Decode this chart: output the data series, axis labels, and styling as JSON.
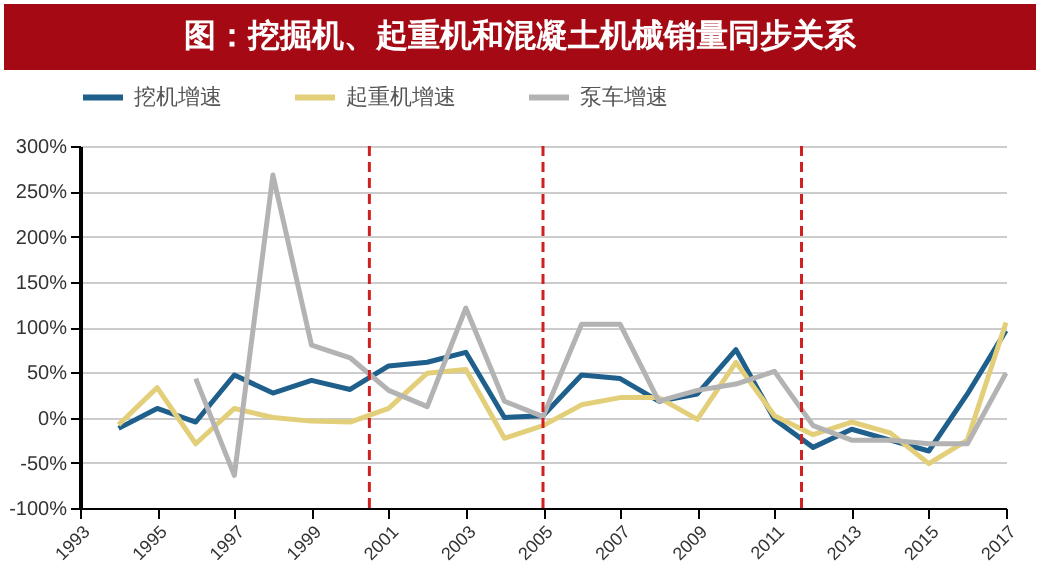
{
  "chart_data": {
    "type": "line",
    "title": "图：挖掘机、起重机和混凝土机械销量同步关系",
    "x": [
      1994,
      1995,
      1996,
      1997,
      1998,
      1999,
      2000,
      2001,
      2002,
      2003,
      2004,
      2005,
      2006,
      2007,
      2008,
      2009,
      2010,
      2011,
      2012,
      2013,
      2014,
      2015,
      2016,
      2017
    ],
    "series": [
      {
        "name": "挖机增速",
        "color": "#1f5f8b",
        "values": [
          -12,
          10,
          -5,
          47,
          27,
          41,
          31,
          57,
          61,
          72,
          0,
          2,
          47,
          43,
          18,
          26,
          75,
          -2,
          -33,
          -13,
          -25,
          -37,
          26,
          96
        ]
      },
      {
        "name": "起重机增速",
        "color": "#e3cf7a",
        "values": [
          -8,
          33,
          -29,
          10,
          0,
          -4,
          -5,
          10,
          49,
          53,
          -23,
          -9,
          14,
          22,
          22,
          -2,
          61,
          2,
          -19,
          -5,
          -17,
          -51,
          -25,
          105
        ]
      },
      {
        "name": "泵车增速",
        "color": "#b3b3b3",
        "values": [
          null,
          null,
          43,
          -64,
          268,
          80,
          66,
          30,
          12,
          121,
          18,
          1,
          103,
          103,
          18,
          30,
          37,
          51,
          -9,
          -25,
          -25,
          -29,
          -29,
          49
        ]
      }
    ],
    "xlim": [
      1993,
      2017
    ],
    "xticks": [
      1993,
      1995,
      1997,
      1999,
      2001,
      2003,
      2005,
      2007,
      2009,
      2011,
      2013,
      2015,
      2017
    ],
    "ylim": [
      -100,
      300
    ],
    "yticks": [
      {
        "value": -100,
        "label": "-100%"
      },
      {
        "value": -50,
        "label": "-50%"
      },
      {
        "value": 0,
        "label": "0%"
      },
      {
        "value": 50,
        "label": "50%"
      },
      {
        "value": 100,
        "label": "100%"
      },
      {
        "value": 150,
        "label": "150%"
      },
      {
        "value": 200,
        "label": "200%"
      },
      {
        "value": 250,
        "label": "250%"
      },
      {
        "value": 300,
        "label": "300%"
      }
    ],
    "ref_lines": [
      {
        "axis": "x",
        "value": 2000.5,
        "color": "#d02020",
        "line_style": "dashed"
      },
      {
        "axis": "x",
        "value": 2005,
        "color": "#d02020",
        "line_style": "dashed"
      },
      {
        "axis": "x",
        "value": 2011.7,
        "color": "#d02020",
        "line_style": "dashed"
      }
    ],
    "grid": "y",
    "legend": "top",
    "marker": "none",
    "line_style": "solid"
  }
}
